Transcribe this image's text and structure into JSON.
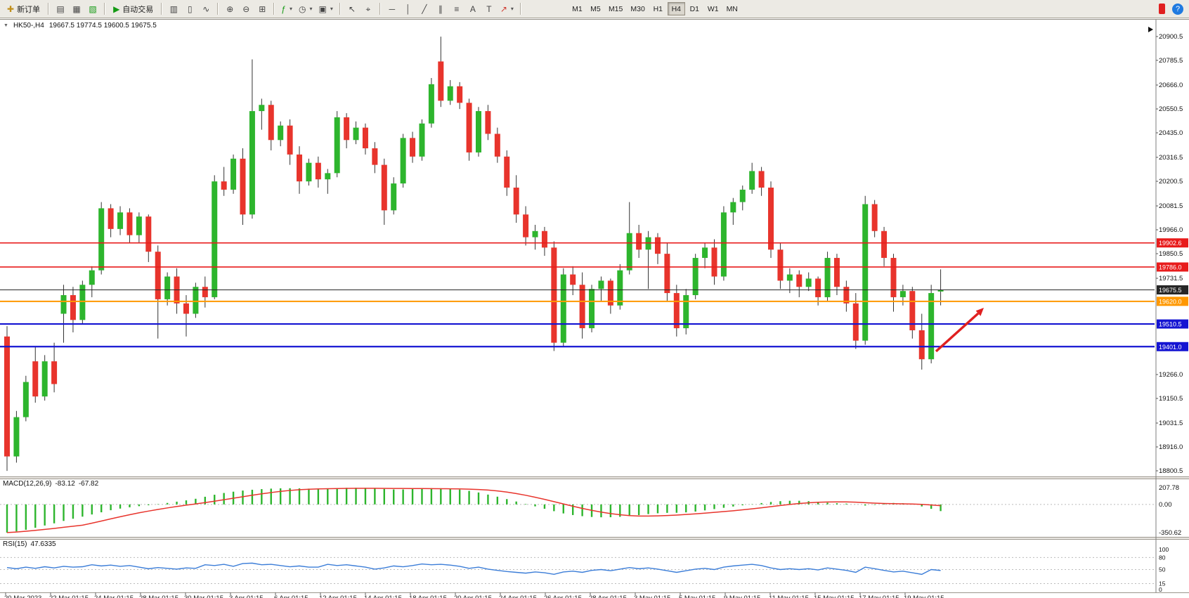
{
  "toolbar": {
    "new_order_label": "新订单",
    "auto_trading_label": "自动交易",
    "timeframes": [
      "M1",
      "M5",
      "M15",
      "M30",
      "H1",
      "H4",
      "D1",
      "W1",
      "MN"
    ],
    "active_timeframe": "H4"
  },
  "icons": {
    "new_order": "✚",
    "market_watch": "▤",
    "data_window": "▦",
    "navigator": "▧",
    "auto_trading": "▶",
    "bar_chart": "▥",
    "candle_chart": "▯",
    "line_chart": "∿",
    "zoom_in": "⊕",
    "zoom_out": "⊖",
    "tile_windows": "⊞",
    "indicators": "ƒ",
    "periods": "◷",
    "templates": "▣",
    "cursor": "↖",
    "crosshair": "⌖",
    "hline": "─",
    "vline": "│",
    "trendline": "╱",
    "channel": "∥",
    "fibonacci": "≡",
    "text": "A",
    "label": "T",
    "arrows": "↗",
    "caret": "▾",
    "collapse": "▼",
    "help": "?"
  },
  "chart": {
    "symbol_period": "HK50-,H4",
    "ohlc": "19667.5 19774.5 19600.5 19675.5"
  },
  "chart_data": {
    "type": "candlestick",
    "title": "HK50-,H4",
    "timeframe": "H4",
    "ylim": [
      18800.5,
      20900.5
    ],
    "grid": false,
    "colors": {
      "up": "#2db52d",
      "down": "#e8342c",
      "wick": "#333333",
      "macd_hist": "#2db52d",
      "macd_signal": "#e8342c",
      "rsi_line": "#3b7dd8",
      "axis_text": "#111111"
    },
    "price_axis_labels": [
      "20900.5",
      "20785.5",
      "20666.0",
      "20550.5",
      "20435.0",
      "20316.5",
      "20200.5",
      "20081.5",
      "19966.0",
      "19850.5",
      "19731.5",
      "19266.0",
      "19150.5",
      "19031.5",
      "18916.0",
      "18800.5"
    ],
    "price_levels": [
      {
        "price": 19902.6,
        "label": "19902.6",
        "color": "#e81c1c",
        "width": 1.6
      },
      {
        "price": 19786.0,
        "label": "19786.0",
        "color": "#e81c1c",
        "width": 1.6
      },
      {
        "price": 19675.5,
        "label": "19675.5",
        "color": "#262626",
        "width": 1,
        "current": true
      },
      {
        "price": 19620.0,
        "label": "19620.0",
        "color": "#ff9800",
        "width": 2
      },
      {
        "price": 19510.5,
        "label": "19510.5",
        "color": "#1414d2",
        "width": 2.2
      },
      {
        "price": 19401.0,
        "label": "19401.0",
        "color": "#1414d2",
        "width": 2.2
      }
    ],
    "candles": [
      [
        19450,
        19500,
        18800,
        18870
      ],
      [
        18870,
        19090,
        18840,
        19060
      ],
      [
        19060,
        19260,
        19040,
        19230
      ],
      [
        19330,
        19400,
        19130,
        19160
      ],
      [
        19160,
        19360,
        19140,
        19330
      ],
      [
        19330,
        19420,
        19180,
        19220
      ],
      [
        19560,
        19700,
        19420,
        19650
      ],
      [
        19650,
        19690,
        19470,
        19530
      ],
      [
        19530,
        19720,
        19510,
        19700
      ],
      [
        19700,
        19790,
        19640,
        19770
      ],
      [
        19770,
        20100,
        19750,
        20070
      ],
      [
        20070,
        20090,
        19930,
        19970
      ],
      [
        19970,
        20080,
        19940,
        20050
      ],
      [
        20050,
        20070,
        19900,
        19940
      ],
      [
        19940,
        20050,
        19900,
        20030
      ],
      [
        20030,
        20040,
        19810,
        19860
      ],
      [
        19860,
        19890,
        19440,
        19630
      ],
      [
        19630,
        19760,
        19600,
        19740
      ],
      [
        19740,
        19780,
        19560,
        19610
      ],
      [
        19610,
        19650,
        19450,
        19560
      ],
      [
        19560,
        19710,
        19540,
        19690
      ],
      [
        19690,
        19740,
        19590,
        19640
      ],
      [
        19640,
        20230,
        19630,
        20200
      ],
      [
        20200,
        20270,
        20130,
        20160
      ],
      [
        20160,
        20330,
        20140,
        20310
      ],
      [
        20310,
        20360,
        19990,
        20040
      ],
      [
        20040,
        20790,
        20020,
        20540
      ],
      [
        20540,
        20600,
        20450,
        20570
      ],
      [
        20570,
        20590,
        20350,
        20400
      ],
      [
        20400,
        20490,
        20370,
        20470
      ],
      [
        20470,
        20500,
        20280,
        20330
      ],
      [
        20330,
        20370,
        20140,
        20200
      ],
      [
        20200,
        20310,
        20180,
        20290
      ],
      [
        20290,
        20320,
        20170,
        20210
      ],
      [
        20210,
        20260,
        20140,
        20240
      ],
      [
        20240,
        20540,
        20220,
        20510
      ],
      [
        20510,
        20530,
        20360,
        20400
      ],
      [
        20400,
        20490,
        20380,
        20460
      ],
      [
        20460,
        20480,
        20330,
        20360
      ],
      [
        20360,
        20390,
        20240,
        20280
      ],
      [
        20280,
        20310,
        19990,
        20060
      ],
      [
        20060,
        20220,
        20040,
        20190
      ],
      [
        20190,
        20430,
        20170,
        20410
      ],
      [
        20410,
        20440,
        20290,
        20320
      ],
      [
        20320,
        20500,
        20300,
        20480
      ],
      [
        20480,
        20700,
        20460,
        20670
      ],
      [
        20780,
        20900,
        20560,
        20590
      ],
      [
        20590,
        20690,
        20570,
        20660
      ],
      [
        20660,
        20680,
        20550,
        20580
      ],
      [
        20580,
        20600,
        20300,
        20340
      ],
      [
        20340,
        20560,
        20320,
        20540
      ],
      [
        20540,
        20570,
        20400,
        20430
      ],
      [
        20430,
        20460,
        20290,
        20320
      ],
      [
        20320,
        20350,
        20130,
        20170
      ],
      [
        20170,
        20230,
        20000,
        20040
      ],
      [
        20040,
        20080,
        19890,
        19930
      ],
      [
        19930,
        19990,
        19870,
        19960
      ],
      [
        19960,
        19980,
        19840,
        19880
      ],
      [
        19880,
        19910,
        19380,
        19420
      ],
      [
        19420,
        19780,
        19400,
        19750
      ],
      [
        19750,
        19790,
        19650,
        19700
      ],
      [
        19700,
        19760,
        19440,
        19490
      ],
      [
        19490,
        19700,
        19470,
        19680
      ],
      [
        19680,
        19740,
        19620,
        19720
      ],
      [
        19720,
        19730,
        19560,
        19600
      ],
      [
        19600,
        19800,
        19580,
        19770
      ],
      [
        19770,
        20100,
        19750,
        19950
      ],
      [
        19950,
        19990,
        19830,
        19870
      ],
      [
        19870,
        19960,
        19680,
        19930
      ],
      [
        19930,
        19950,
        19800,
        19850
      ],
      [
        19850,
        19900,
        19620,
        19660
      ],
      [
        19660,
        19700,
        19450,
        19490
      ],
      [
        19490,
        19680,
        19460,
        19650
      ],
      [
        19650,
        19850,
        19630,
        19830
      ],
      [
        19830,
        19900,
        19780,
        19880
      ],
      [
        19880,
        19920,
        19700,
        19740
      ],
      [
        19740,
        20080,
        19720,
        20050
      ],
      [
        20050,
        20120,
        19990,
        20100
      ],
      [
        20100,
        20180,
        20060,
        20160
      ],
      [
        20160,
        20290,
        20140,
        20250
      ],
      [
        20250,
        20270,
        20130,
        20170
      ],
      [
        20170,
        20200,
        19830,
        19870
      ],
      [
        19870,
        19900,
        19680,
        19720
      ],
      [
        19720,
        19780,
        19660,
        19750
      ],
      [
        19750,
        19770,
        19640,
        19690
      ],
      [
        19690,
        19760,
        19670,
        19730
      ],
      [
        19730,
        19740,
        19600,
        19640
      ],
      [
        19640,
        19860,
        19620,
        19830
      ],
      [
        19830,
        19850,
        19650,
        19690
      ],
      [
        19690,
        19720,
        19570,
        19610
      ],
      [
        19610,
        19660,
        19390,
        19430
      ],
      [
        19430,
        20130,
        19410,
        20090
      ],
      [
        20090,
        20110,
        19930,
        19960
      ],
      [
        19960,
        19980,
        19790,
        19830
      ],
      [
        19830,
        19850,
        19570,
        19640
      ],
      [
        19640,
        19700,
        19600,
        19670
      ],
      [
        19670,
        19690,
        19440,
        19480
      ],
      [
        19480,
        19560,
        19290,
        19340
      ],
      [
        19340,
        19700,
        19320,
        19660
      ],
      [
        19667.5,
        19774.5,
        19600.5,
        19675.5
      ]
    ],
    "x_labels": [
      "20 Mar 2023",
      "22 Mar 01:15",
      "24 Mar 01:15",
      "28 Mar 01:15",
      "30 Mar 01:15",
      "3 Apr 01:15",
      "6 Apr 01:15",
      "12 Apr 01:15",
      "14 Apr 01:15",
      "18 Apr 01:15",
      "20 Apr 01:15",
      "24 Apr 01:15",
      "26 Apr 01:15",
      "28 Apr 01:15",
      "3 May 01:15",
      "5 May 01:15",
      "9 May 01:15",
      "11 May 01:15",
      "15 May 01:15",
      "17 May 01:15",
      "19 May 01:15"
    ],
    "macd": {
      "name": "MACD(12,26,9)",
      "value_main": "-83.12",
      "value_signal": "-67.82",
      "axis_labels": [
        "207.78",
        "0.00",
        "-350.62"
      ],
      "range": [
        -350.62,
        207.78
      ],
      "hist": [
        -350,
        -335,
        -315,
        -290,
        -262,
        -235,
        -205,
        -178,
        -152,
        -125,
        -98,
        -72,
        -52,
        -36,
        -22,
        -10,
        4,
        18,
        34,
        50,
        70,
        95,
        120,
        142,
        158,
        172,
        182,
        190,
        196,
        200,
        201,
        199,
        196,
        193,
        196,
        201,
        206,
        207,
        205,
        200,
        192,
        186,
        186,
        191,
        196,
        201,
        200,
        194,
        184,
        168,
        148,
        122,
        96,
        66,
        36,
        6,
        -24,
        -54,
        -84,
        -112,
        -132,
        -146,
        -156,
        -160,
        -159,
        -154,
        -144,
        -133,
        -120,
        -110,
        -105,
        -104,
        -99,
        -89,
        -74,
        -58,
        -42,
        -26,
        -11,
        3,
        17,
        30,
        40,
        45,
        45,
        40,
        31,
        21,
        15,
        10,
        1,
        -14,
        -6,
        8,
        18,
        14,
        -2,
        -25,
        -55,
        -83
      ]
    },
    "rsi": {
      "name": "RSI(15)",
      "value": "47.6335",
      "axis_labels": [
        "100",
        "80",
        "50",
        "15",
        "0"
      ],
      "levels": [
        80,
        50,
        15
      ],
      "range": [
        0,
        100
      ],
      "values": [
        55,
        52,
        56,
        53,
        57,
        54,
        58,
        56,
        57,
        62,
        59,
        61,
        58,
        60,
        56,
        52,
        55,
        53,
        51,
        54,
        53,
        62,
        60,
        63,
        58,
        65,
        66,
        62,
        63,
        60,
        57,
        59,
        56,
        56,
        63,
        60,
        62,
        59,
        56,
        51,
        54,
        59,
        57,
        60,
        64,
        62,
        63,
        61,
        58,
        53,
        56,
        51,
        48,
        45,
        43,
        41,
        44,
        42,
        38,
        44,
        46,
        43,
        48,
        50,
        47,
        51,
        55,
        52,
        54,
        51,
        47,
        43,
        47,
        51,
        53,
        50,
        56,
        59,
        61,
        63,
        60,
        54,
        50,
        52,
        50,
        52,
        49,
        54,
        51,
        48,
        43,
        56,
        52,
        48,
        44,
        46,
        42,
        38,
        50,
        47.6
      ]
    },
    "annotations": [
      {
        "type": "arrow",
        "color": "#e02020",
        "direction": "up-right"
      }
    ]
  }
}
